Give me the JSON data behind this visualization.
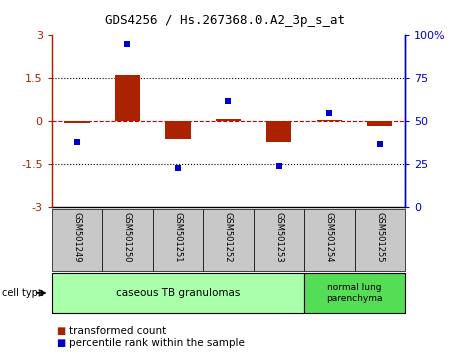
{
  "title": "GDS4256 / Hs.267368.0.A2_3p_s_at",
  "samples": [
    "GSM501249",
    "GSM501250",
    "GSM501251",
    "GSM501252",
    "GSM501253",
    "GSM501254",
    "GSM501255"
  ],
  "transformed_count": [
    -0.05,
    1.62,
    -0.62,
    0.08,
    -0.72,
    0.05,
    -0.18
  ],
  "percentile_rank": [
    38,
    95,
    23,
    62,
    24,
    55,
    37
  ],
  "red_color": "#aa2200",
  "blue_color": "#0000cc",
  "ylim_left": [
    -3,
    3
  ],
  "ylim_right": [
    0,
    100
  ],
  "yticks_left": [
    -3,
    -1.5,
    0,
    1.5,
    3
  ],
  "yticks_right": [
    0,
    25,
    50,
    75,
    100
  ],
  "ytick_labels_right": [
    "0",
    "25",
    "50",
    "75",
    "100%"
  ],
  "hlines_dotted": [
    -1.5,
    1.5
  ],
  "hline_dashed": 0,
  "group1_count": 5,
  "group2_count": 2,
  "group1_label": "caseous TB granulomas",
  "group2_label": "normal lung\nparenchyma",
  "group1_color": "#aaffaa",
  "group2_color": "#55dd55",
  "cell_type_label": "cell type",
  "legend_red": "transformed count",
  "legend_blue": "percentile rank within the sample",
  "bar_width": 0.5,
  "marker_size": 5,
  "bg_color": "#ffffff",
  "plot_bg": "#ffffff",
  "zero_line_color": "#cc0000",
  "sample_box_color": "#c8c8c8",
  "title_fontsize": 9,
  "axis_fontsize": 8,
  "label_fontsize": 7,
  "legend_fontsize": 7.5
}
